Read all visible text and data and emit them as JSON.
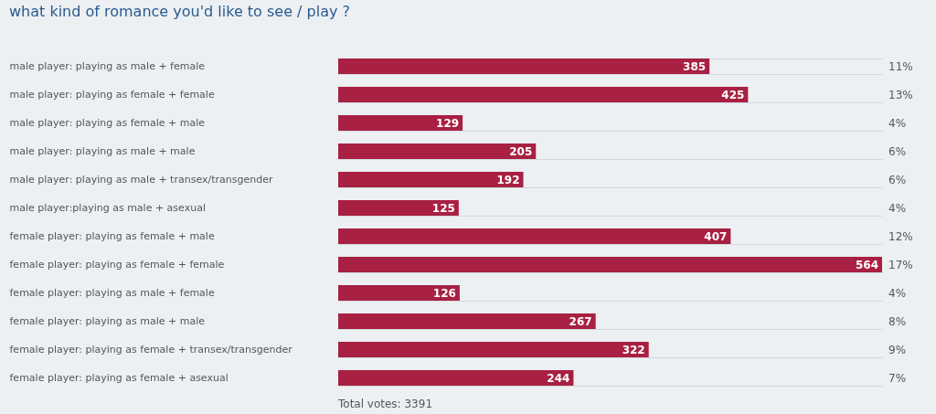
{
  "chart_data": {
    "type": "bar",
    "orientation": "horizontal",
    "title": "what kind of romance you'd like to see / play ?",
    "categories": [
      "male player: playing as male + female",
      "male player: playing as female + female",
      "male player: playing as female + male",
      "male player: playing as male + male",
      "male player: playing as male + transex/transgender",
      "male player:playing as male + asexual",
      "female player: playing as female + male",
      "female player: playing as female + female",
      "female player: playing as male + female",
      "female player: playing as male + male",
      "female player: playing as female + transex/transgender",
      "female player: playing as female + asexual"
    ],
    "values": [
      385,
      425,
      129,
      205,
      192,
      125,
      407,
      564,
      126,
      267,
      322,
      244
    ],
    "color": "#a82042",
    "data_labels": true,
    "grid": "y",
    "annotations": [
      "11%",
      "13%",
      "4%",
      "6%",
      "6%",
      "4%",
      "12%",
      "17%",
      "4%",
      "8%",
      "9%",
      "7%",
      "Total votes: 3391"
    ]
  }
}
